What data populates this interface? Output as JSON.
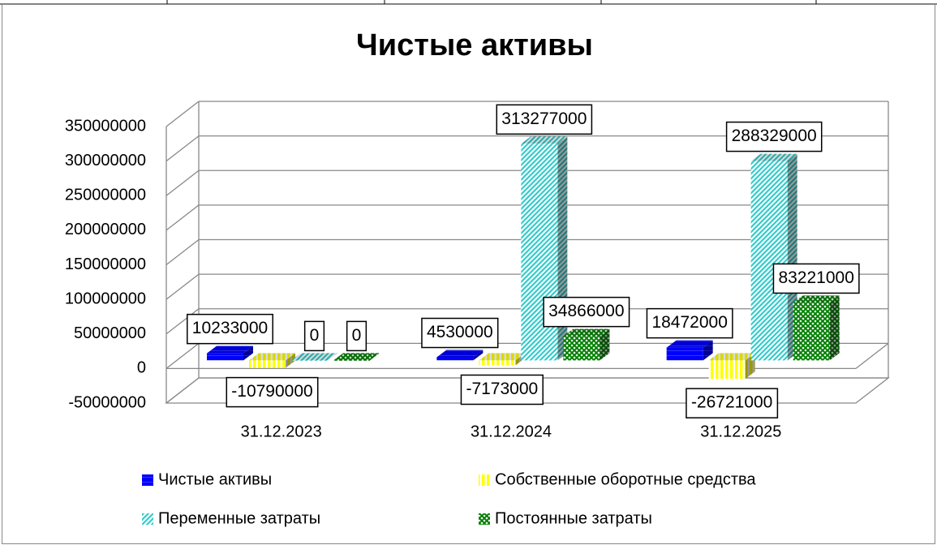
{
  "chart_data": {
    "type": "bar",
    "title": "Чистые активы",
    "categories": [
      "31.12.2023",
      "31.12.2024",
      "31.12.2025"
    ],
    "series": [
      {
        "name": "Чистые активы",
        "color": "#0000ff",
        "values": [
          10233000,
          4530000,
          18472000
        ]
      },
      {
        "name": "Собственные оборотные средства",
        "color": "#ffff00",
        "values": [
          -10790000,
          -7173000,
          -26721000
        ]
      },
      {
        "name": "Переменные затраты",
        "color": "#33cccc",
        "values": [
          0,
          313277000,
          288329000
        ]
      },
      {
        "name": "Постоянные затраты",
        "color": "#008000",
        "values": [
          0,
          34866000,
          83221000
        ]
      }
    ],
    "ylim": [
      -50000000,
      350000000
    ],
    "yticks": [
      -50000000,
      0,
      50000000,
      100000000,
      150000000,
      200000000,
      250000000,
      300000000,
      350000000
    ],
    "grid": true
  }
}
